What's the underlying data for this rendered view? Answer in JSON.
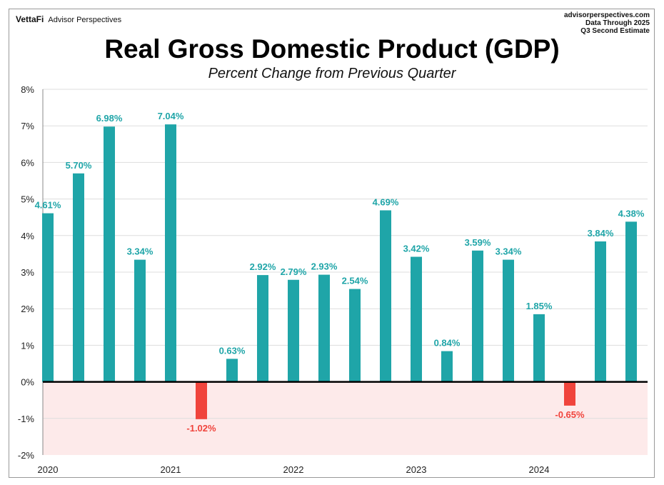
{
  "header": {
    "brand": "VettaFi",
    "brand_sub": "Advisor Perspectives",
    "site": "advisorperspectives.com",
    "data_through": "Data Through 2025",
    "estimate": "Q3 Second Estimate"
  },
  "chart_data": {
    "type": "bar",
    "title": "Real Gross Domestic Product (GDP)",
    "subtitle": "Percent Change from Previous Quarter",
    "xlabel": "",
    "ylabel": "",
    "ylim": [
      -2,
      8
    ],
    "yticks": [
      -2,
      -1,
      0,
      1,
      2,
      3,
      4,
      5,
      6,
      7,
      8
    ],
    "ytick_labels": [
      "-2%",
      "-1%",
      "0%",
      "1%",
      "2%",
      "3%",
      "4%",
      "5%",
      "6%",
      "7%",
      "8%"
    ],
    "xtick_labels": [
      "2020",
      "2021",
      "2022",
      "2023",
      "2024"
    ],
    "values": [
      4.61,
      5.7,
      6.98,
      3.34,
      7.04,
      -1.02,
      0.63,
      2.92,
      2.79,
      2.93,
      2.54,
      4.69,
      3.42,
      0.84,
      3.59,
      3.34,
      1.85,
      -0.65,
      3.84,
      4.38
    ],
    "labels": [
      "4.61%",
      "5.70%",
      "6.98%",
      "3.34%",
      "7.04%",
      "-1.02%",
      "0.63%",
      "2.92%",
      "2.79%",
      "2.93%",
      "2.54%",
      "4.69%",
      "3.42%",
      "0.84%",
      "3.59%",
      "3.34%",
      "1.85%",
      "-0.65%",
      "3.84%",
      "4.38%"
    ],
    "grid": true,
    "colors": {
      "positive": "#1fa5a8",
      "negative": "#f0443c",
      "negative_band": "#fdeaea",
      "grid": "#dddddd"
    }
  }
}
